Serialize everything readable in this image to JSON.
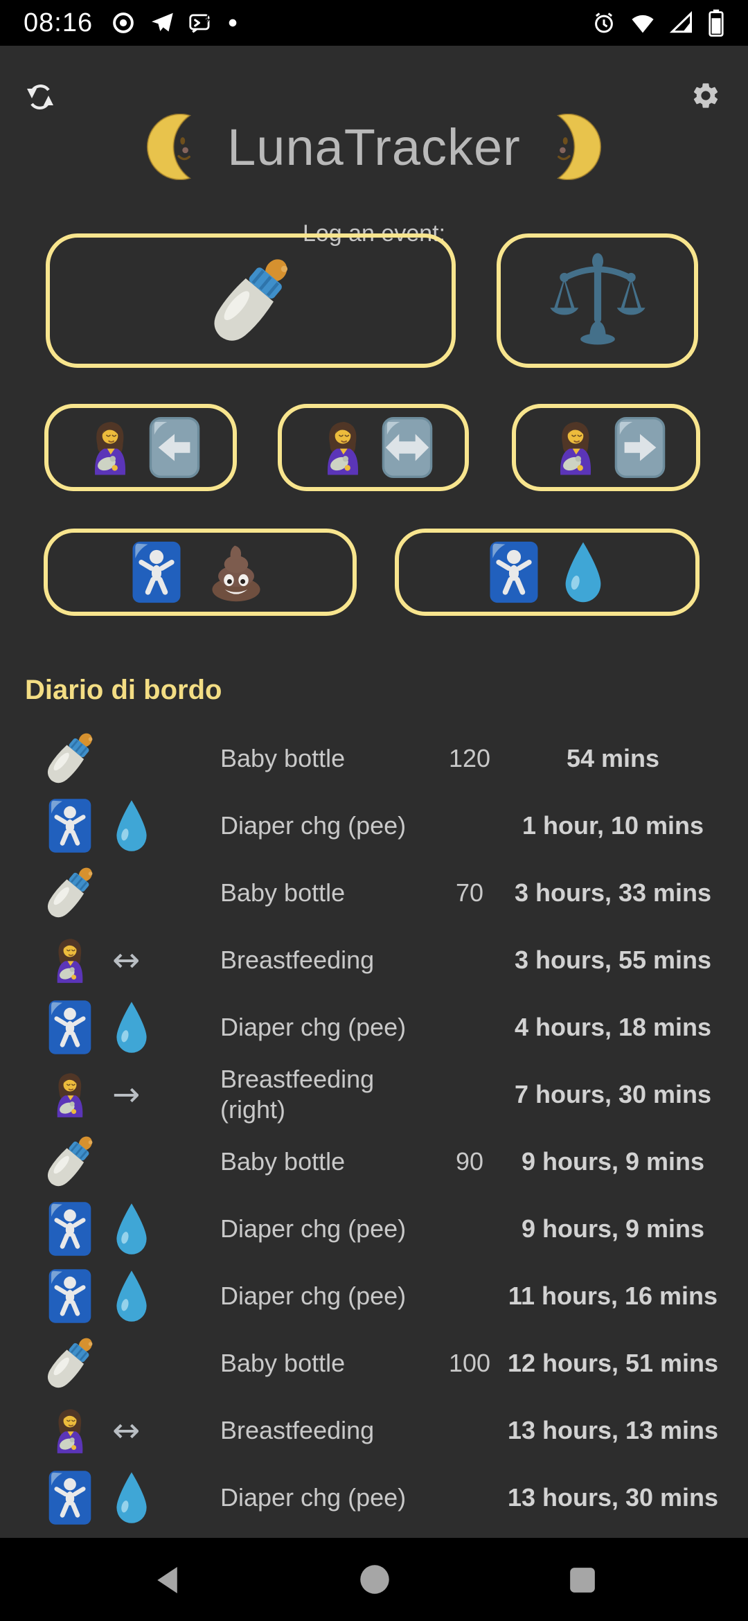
{
  "status_bar": {
    "time": "08:16",
    "left_icons": [
      "record-icon",
      "telegram-icon",
      "message-lightning-icon",
      "notification-dot"
    ],
    "right_icons": [
      "alarm-icon",
      "wifi-icon",
      "signal-icon",
      "battery-icon"
    ]
  },
  "header": {
    "refresh_icon": "sync-icon",
    "settings_icon": "gear-icon",
    "title_moon_left": "moon-left-icon",
    "title": "LunaTracker",
    "title_moon_right": "moon-right-icon",
    "subtitle": "Log an event:"
  },
  "log_buttons": [
    {
      "name": "bottle-button",
      "icons": [
        "baby-bottle-icon"
      ]
    },
    {
      "name": "scale-button",
      "icons": [
        "balance-scale-icon"
      ]
    },
    {
      "name": "breastfeed-left-button",
      "icons": [
        "breastfeeding-icon",
        "arrow-left-button-icon"
      ]
    },
    {
      "name": "breastfeed-both-button",
      "icons": [
        "breastfeeding-icon",
        "arrow-both-button-icon"
      ]
    },
    {
      "name": "breastfeed-right-button",
      "icons": [
        "breastfeeding-icon",
        "arrow-right-button-icon"
      ]
    },
    {
      "name": "diaper-poo-button",
      "icons": [
        "baby-symbol-icon",
        "poop-icon"
      ]
    },
    {
      "name": "diaper-pee-button",
      "icons": [
        "baby-symbol-icon",
        "droplet-icon"
      ]
    }
  ],
  "glyphs": {
    "arrow_both": "↔",
    "arrow_right": "→"
  },
  "log": {
    "heading": "Diario di bordo",
    "rows": [
      {
        "icon1": "baby-bottle-icon",
        "icon2": "",
        "label": "Baby bottle",
        "value": "120",
        "time": "54 mins"
      },
      {
        "icon1": "baby-symbol-icon",
        "icon2": "droplet-icon",
        "label": "Diaper chg (pee)",
        "value": "",
        "time": "1 hour, 10 mins"
      },
      {
        "icon1": "baby-bottle-icon",
        "icon2": "",
        "label": "Baby bottle",
        "value": "70",
        "time": "3 hours, 33 mins"
      },
      {
        "icon1": "breastfeeding-icon",
        "icon2": "arrow-both-icon",
        "label": "Breastfeeding",
        "value": "",
        "time": "3 hours, 55 mins"
      },
      {
        "icon1": "baby-symbol-icon",
        "icon2": "droplet-icon",
        "label": "Diaper chg (pee)",
        "value": "",
        "time": "4 hours, 18 mins"
      },
      {
        "icon1": "breastfeeding-icon",
        "icon2": "arrow-right-icon",
        "label": "Breastfeeding (right)",
        "value": "",
        "time": "7 hours, 30 mins"
      },
      {
        "icon1": "baby-bottle-icon",
        "icon2": "",
        "label": "Baby bottle",
        "value": "90",
        "time": "9 hours, 9 mins"
      },
      {
        "icon1": "baby-symbol-icon",
        "icon2": "droplet-icon",
        "label": "Diaper chg (pee)",
        "value": "",
        "time": "9 hours, 9 mins"
      },
      {
        "icon1": "baby-symbol-icon",
        "icon2": "droplet-icon",
        "label": "Diaper chg (pee)",
        "value": "",
        "time": "11 hours, 16 mins"
      },
      {
        "icon1": "baby-bottle-icon",
        "icon2": "",
        "label": "Baby bottle",
        "value": "100",
        "time": "12 hours, 51 mins"
      },
      {
        "icon1": "breastfeeding-icon",
        "icon2": "arrow-both-icon",
        "label": "Breastfeeding",
        "value": "",
        "time": "13 hours, 13 mins"
      },
      {
        "icon1": "baby-symbol-icon",
        "icon2": "droplet-icon",
        "label": "Diaper chg (pee)",
        "value": "",
        "time": "13 hours, 30 mins"
      }
    ]
  },
  "nav_bar": {
    "icons": [
      "back-icon",
      "home-icon",
      "recents-icon"
    ]
  },
  "colors": {
    "app_background": "#2d2d2d",
    "bar_background": "#000000",
    "button_border": "#f8e58e",
    "accent_heading": "#f3dd84",
    "title_text": "#b9b9b9",
    "row_text": "#c9c9c9"
  }
}
